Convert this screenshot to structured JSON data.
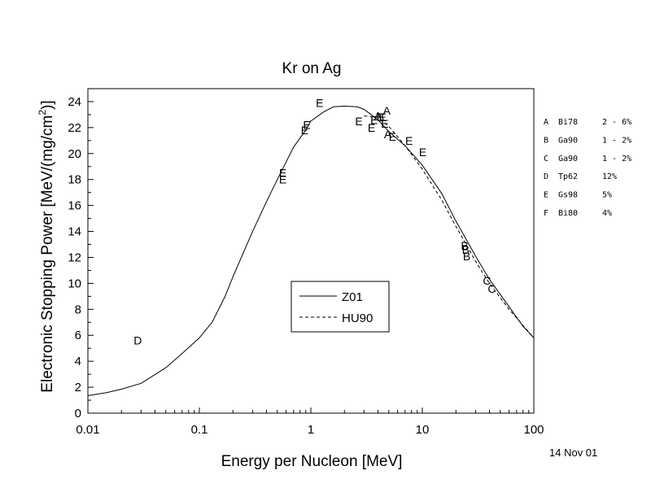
{
  "chart_data": {
    "type": "line",
    "title": "Kr on Ag",
    "xlabel": "Energy per Nucleon [MeV]",
    "ylabel_main": "Electronic Stopping Power [MeV/(mg/cm",
    "ylabel_sup": "2",
    "ylabel_end": ")]",
    "x_scale": "log",
    "xlim": [
      0.01,
      100
    ],
    "ylim": [
      0,
      25
    ],
    "x_ticks": [
      0.01,
      0.1,
      1,
      10,
      100
    ],
    "x_tick_labels": [
      "0.01",
      "0.1",
      "1",
      "10",
      "100"
    ],
    "y_ticks": [
      0,
      2,
      4,
      6,
      8,
      10,
      12,
      14,
      16,
      18,
      20,
      22,
      24
    ],
    "y_tick_labels": [
      "0",
      "2",
      "4",
      "6",
      "8",
      "10",
      "12",
      "14",
      "16",
      "18",
      "20",
      "22",
      "24"
    ],
    "grid": false,
    "legend": {
      "position": "center",
      "entries": [
        {
          "name": "Z01",
          "style": "solid"
        },
        {
          "name": "HU90",
          "style": "dashed"
        }
      ]
    },
    "series": [
      {
        "name": "Z01",
        "style": "solid",
        "x": [
          0.01,
          0.015,
          0.02,
          0.03,
          0.05,
          0.07,
          0.1,
          0.13,
          0.17,
          0.2,
          0.3,
          0.4,
          0.5,
          0.7,
          0.9,
          1.0,
          1.3,
          1.6,
          2.0,
          2.6,
          3.0,
          4.0,
          5.0,
          7.0,
          10.0,
          15.0,
          20.0,
          30.0,
          40.0,
          60.0,
          80.0,
          100.0
        ],
        "y": [
          1.35,
          1.6,
          1.85,
          2.3,
          3.5,
          4.6,
          5.8,
          7.0,
          9.0,
          10.5,
          14.0,
          16.3,
          18.0,
          20.5,
          21.8,
          22.5,
          23.2,
          23.6,
          23.65,
          23.6,
          23.4,
          22.6,
          21.7,
          20.6,
          19.1,
          16.9,
          14.8,
          12.1,
          10.3,
          8.2,
          6.7,
          5.8
        ]
      },
      {
        "name": "HU90",
        "style": "dashed",
        "x": [
          3.0,
          4.0,
          5.0,
          7.0,
          10.0,
          15.0,
          20.0,
          30.0,
          40.0,
          60.0,
          100.0
        ],
        "y": [
          22.9,
          22.8,
          22.1,
          20.6,
          18.8,
          16.4,
          14.4,
          11.7,
          10.0,
          8.0,
          5.8
        ]
      }
    ],
    "measurement_points": [
      {
        "label": "E",
        "x": 1.2,
        "y": 23.9
      },
      {
        "label": "E",
        "x": 0.92,
        "y": 22.2
      },
      {
        "label": "E",
        "x": 0.88,
        "y": 21.8
      },
      {
        "label": "E",
        "x": 0.56,
        "y": 18.5
      },
      {
        "label": "E",
        "x": 0.56,
        "y": 18.0
      },
      {
        "label": "E",
        "x": 2.7,
        "y": 22.5
      },
      {
        "label": "E",
        "x": 3.5,
        "y": 22.0
      },
      {
        "label": "E",
        "x": 3.7,
        "y": 22.6
      },
      {
        "label": "E",
        "x": 4.4,
        "y": 22.8
      },
      {
        "label": "E",
        "x": 4.6,
        "y": 22.3
      },
      {
        "label": "E",
        "x": 5.4,
        "y": 21.3
      },
      {
        "label": "E",
        "x": 7.6,
        "y": 21.0
      },
      {
        "label": "E",
        "x": 10.1,
        "y": 20.1
      },
      {
        "label": "A",
        "x": 4.0,
        "y": 22.9
      },
      {
        "label": "A",
        "x": 4.8,
        "y": 23.3
      },
      {
        "label": "A",
        "x": 4.9,
        "y": 21.5
      },
      {
        "label": "B",
        "x": 4.2,
        "y": 22.8
      },
      {
        "label": "B",
        "x": 24.0,
        "y": 12.9
      },
      {
        "label": "B",
        "x": 24.5,
        "y": 12.6
      },
      {
        "label": "B",
        "x": 25.0,
        "y": 12.1
      },
      {
        "label": "C",
        "x": 38.0,
        "y": 10.2
      },
      {
        "label": "C",
        "x": 42.0,
        "y": 9.6
      },
      {
        "label": "D",
        "x": 0.028,
        "y": 5.6
      }
    ],
    "references": [
      {
        "letter": "A",
        "code": "Bi78",
        "error": "2 - 6%"
      },
      {
        "letter": "B",
        "code": "Ga90",
        "error": "1 - 2%"
      },
      {
        "letter": "C",
        "code": "Ga90",
        "error": "1 - 2%"
      },
      {
        "letter": "D",
        "code": "Tp62",
        "error": "12%"
      },
      {
        "letter": "E",
        "code": "Gs98",
        "error": "5%"
      },
      {
        "letter": "F",
        "code": "Bi80",
        "error": "4%"
      }
    ]
  },
  "footer": {
    "date": "14 Nov 01"
  }
}
